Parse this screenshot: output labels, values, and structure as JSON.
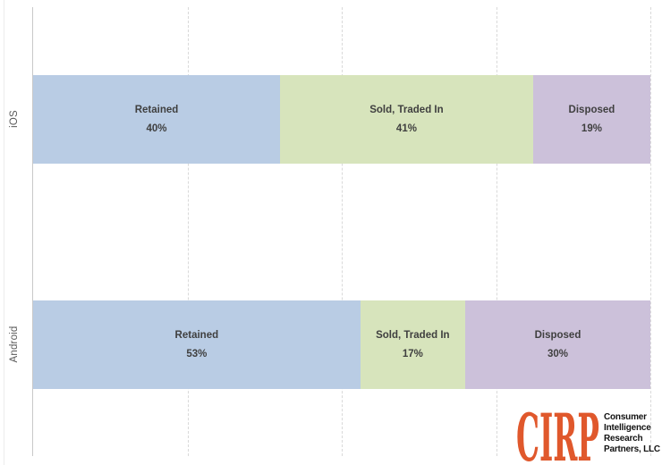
{
  "chart_data": {
    "type": "bar",
    "orientation": "horizontal",
    "stacked": true,
    "title": "",
    "xlabel": "",
    "ylabel": "",
    "xlim": [
      0,
      100
    ],
    "unit": "%",
    "grid": "dashed-vertical",
    "gridline_positions_pct": [
      25,
      50,
      75,
      100
    ],
    "legend_position": "none",
    "value_labels": "inside-segments",
    "categories": [
      "iOS",
      "Android"
    ],
    "series": [
      {
        "name": "Retained",
        "values": [
          40,
          53
        ],
        "color": "#b9cce4"
      },
      {
        "name": "Sold, Traded In",
        "values": [
          41,
          17
        ],
        "color": "#d7e4bc"
      },
      {
        "name": "Disposed",
        "values": [
          19,
          30
        ],
        "color": "#ccc1da"
      }
    ]
  },
  "style": {
    "segment_label_color": "#3f3f3f",
    "axis_label_color": "#595959",
    "gridline_color": "#d9d9d9",
    "axis_line_color": "#c9c9c9"
  },
  "logo": {
    "acronym": "CIRP",
    "acronym_color": "#e0582c",
    "lines": [
      "Consumer",
      "Intelligence",
      "Research",
      "Partners, LLC"
    ],
    "text_color": "#121212"
  }
}
